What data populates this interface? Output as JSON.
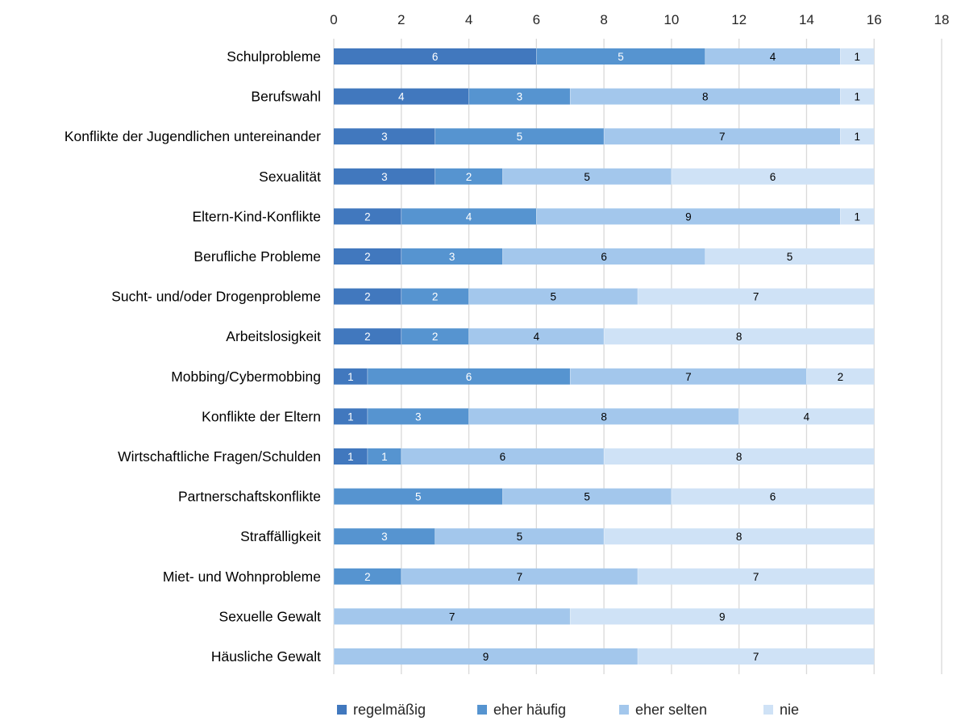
{
  "chart_data": {
    "type": "bar",
    "orientation": "horizontal",
    "stacked": true,
    "title": "",
    "xlabel": "",
    "ylabel": "",
    "xlim": [
      0,
      18
    ],
    "x_ticks": [
      "0",
      "2",
      "4",
      "6",
      "8",
      "10",
      "12",
      "14",
      "16",
      "18"
    ],
    "x_axis_position": "top",
    "grid": true,
    "legend_position": "bottom",
    "categories": [
      "Schulprobleme",
      "Berufswahl",
      "Konflikte der Jugendlichen untereinander",
      "Sexualität",
      "Eltern-Kind-Konflikte",
      "Berufliche Probleme",
      "Sucht- und/oder Drogenprobleme",
      "Arbeitslosigkeit",
      "Mobbing/Cybermobbing",
      "Konflikte der Eltern",
      "Wirtschaftliche Fragen/Schulden",
      "Partnerschaftskonflikte",
      "Straffälligkeit",
      "Miet- und Wohnprobleme",
      "Sexuelle Gewalt",
      "Häusliche Gewalt"
    ],
    "series": [
      {
        "name": "regelmäßig",
        "color": "#4178be",
        "label_color": "#ffffff",
        "values": [
          6,
          4,
          3,
          3,
          2,
          2,
          2,
          2,
          1,
          1,
          1,
          0,
          0,
          0,
          0,
          0
        ]
      },
      {
        "name": "eher häufig",
        "color": "#5694d0",
        "label_color": "#ffffff",
        "values": [
          5,
          3,
          5,
          2,
          4,
          3,
          2,
          2,
          6,
          3,
          1,
          5,
          3,
          2,
          0,
          0
        ]
      },
      {
        "name": "eher selten",
        "color": "#a3c7ec",
        "label_color": "#000000",
        "values": [
          4,
          8,
          7,
          5,
          9,
          6,
          5,
          4,
          7,
          8,
          6,
          5,
          5,
          7,
          7,
          9
        ]
      },
      {
        "name": "nie",
        "color": "#cfe2f6",
        "label_color": "#000000",
        "values": [
          1,
          1,
          1,
          6,
          1,
          5,
          7,
          8,
          2,
          4,
          8,
          6,
          8,
          7,
          9,
          7
        ]
      }
    ]
  }
}
